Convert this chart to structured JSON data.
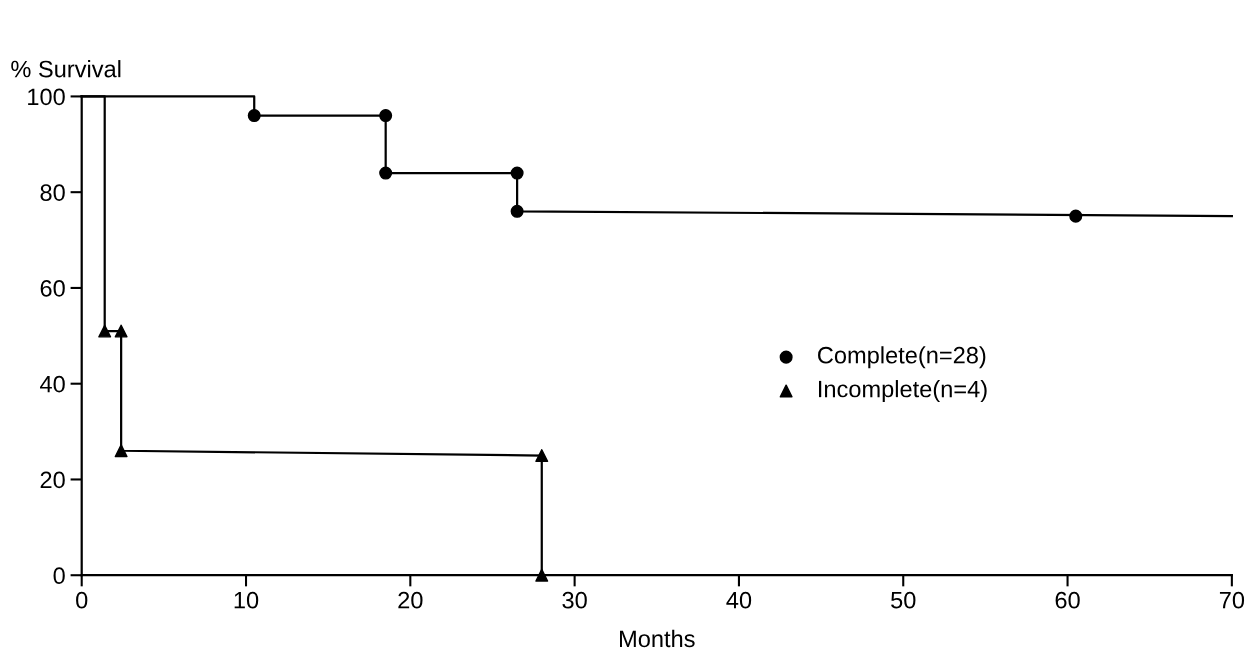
{
  "chart_data": {
    "type": "line",
    "xlabel": "Months",
    "ylabel": "% Survival",
    "xlim": [
      0,
      70
    ],
    "ylim": [
      0,
      100
    ],
    "xticks": [
      0,
      10,
      20,
      30,
      40,
      50,
      60,
      70
    ],
    "yticks": [
      0,
      20,
      40,
      60,
      80,
      100
    ],
    "grid": false,
    "legend": "center",
    "series": [
      {
        "color": "#000000",
        "marker": "none",
        "x": [
          0,
          10.5,
          10.5,
          18.5,
          18.5,
          26.5,
          26.5,
          70
        ],
        "values": [
          100,
          100,
          96,
          96,
          84,
          84,
          76,
          75
        ]
      },
      {
        "type": "scatter",
        "name": "Complete(n=28)",
        "color": "#000000",
        "marker": "circle",
        "x": [
          10.5,
          18.5,
          18.5,
          26.5,
          26.5,
          60.5
        ],
        "values": [
          96,
          96,
          84,
          84,
          76,
          75
        ]
      },
      {
        "color": "#000000",
        "marker": "none",
        "x": [
          0,
          1.4,
          1.4,
          2.4,
          2.4,
          28,
          28
        ],
        "values": [
          100,
          100,
          51,
          51,
          26,
          25,
          0
        ]
      },
      {
        "type": "scatter",
        "name": "Incomplete(n=4)",
        "color": "#000000",
        "marker": "triangle",
        "x": [
          1.4,
          2.4,
          2.4,
          28,
          28
        ],
        "values": [
          51,
          51,
          26,
          25,
          0
        ]
      }
    ]
  }
}
